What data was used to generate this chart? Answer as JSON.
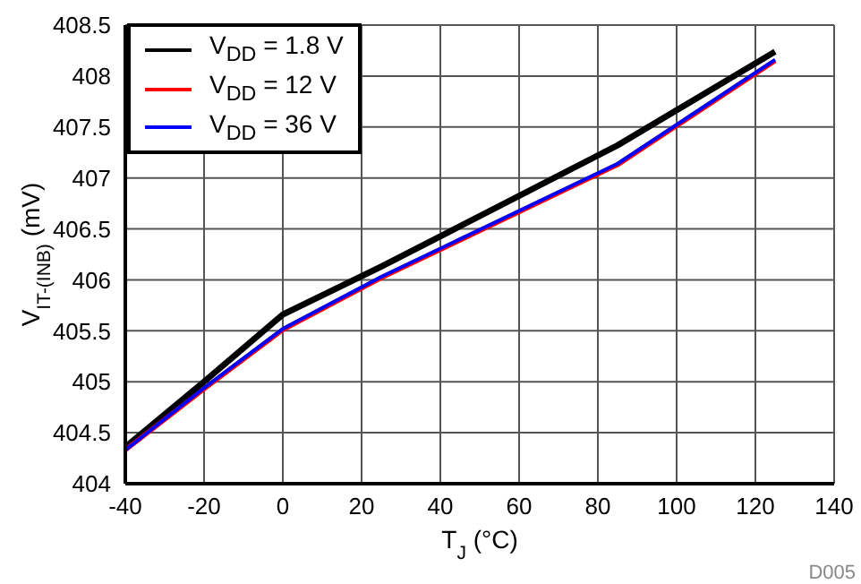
{
  "chart_data": {
    "type": "line",
    "xlabel": "T$_{J}$ (°C)",
    "ylabel": "V$_{IT-(INB)}$ (mV)",
    "x": [
      -40,
      -20,
      0,
      25,
      85,
      125
    ],
    "series": [
      {
        "name": "V$_{DD}$ = 1.8 V",
        "color": "#000000",
        "values": [
          404.36,
          405.0,
          405.66,
          406.13,
          407.32,
          408.24
        ]
      },
      {
        "name": "V$_{DD}$ = 12 V",
        "color": "#ff0000",
        "values": [
          404.33,
          404.93,
          405.51,
          406.02,
          407.13,
          408.15
        ]
      },
      {
        "name": "V$_{DD}$ = 36 V",
        "color": "#0000ff",
        "values": [
          404.33,
          404.94,
          405.52,
          406.03,
          407.14,
          408.16
        ]
      }
    ],
    "xlim": [
      -40,
      140
    ],
    "xticks": [
      -40,
      -20,
      0,
      20,
      40,
      60,
      80,
      100,
      120,
      140
    ],
    "ylim": [
      404,
      408.5
    ],
    "yticks": [
      404,
      404.5,
      405,
      405.5,
      406,
      406.5,
      407,
      407.5,
      408,
      408.5
    ],
    "grid": true,
    "legend": "top left",
    "marker": "none",
    "line_style": "solid",
    "annotations": [
      "D005"
    ]
  }
}
